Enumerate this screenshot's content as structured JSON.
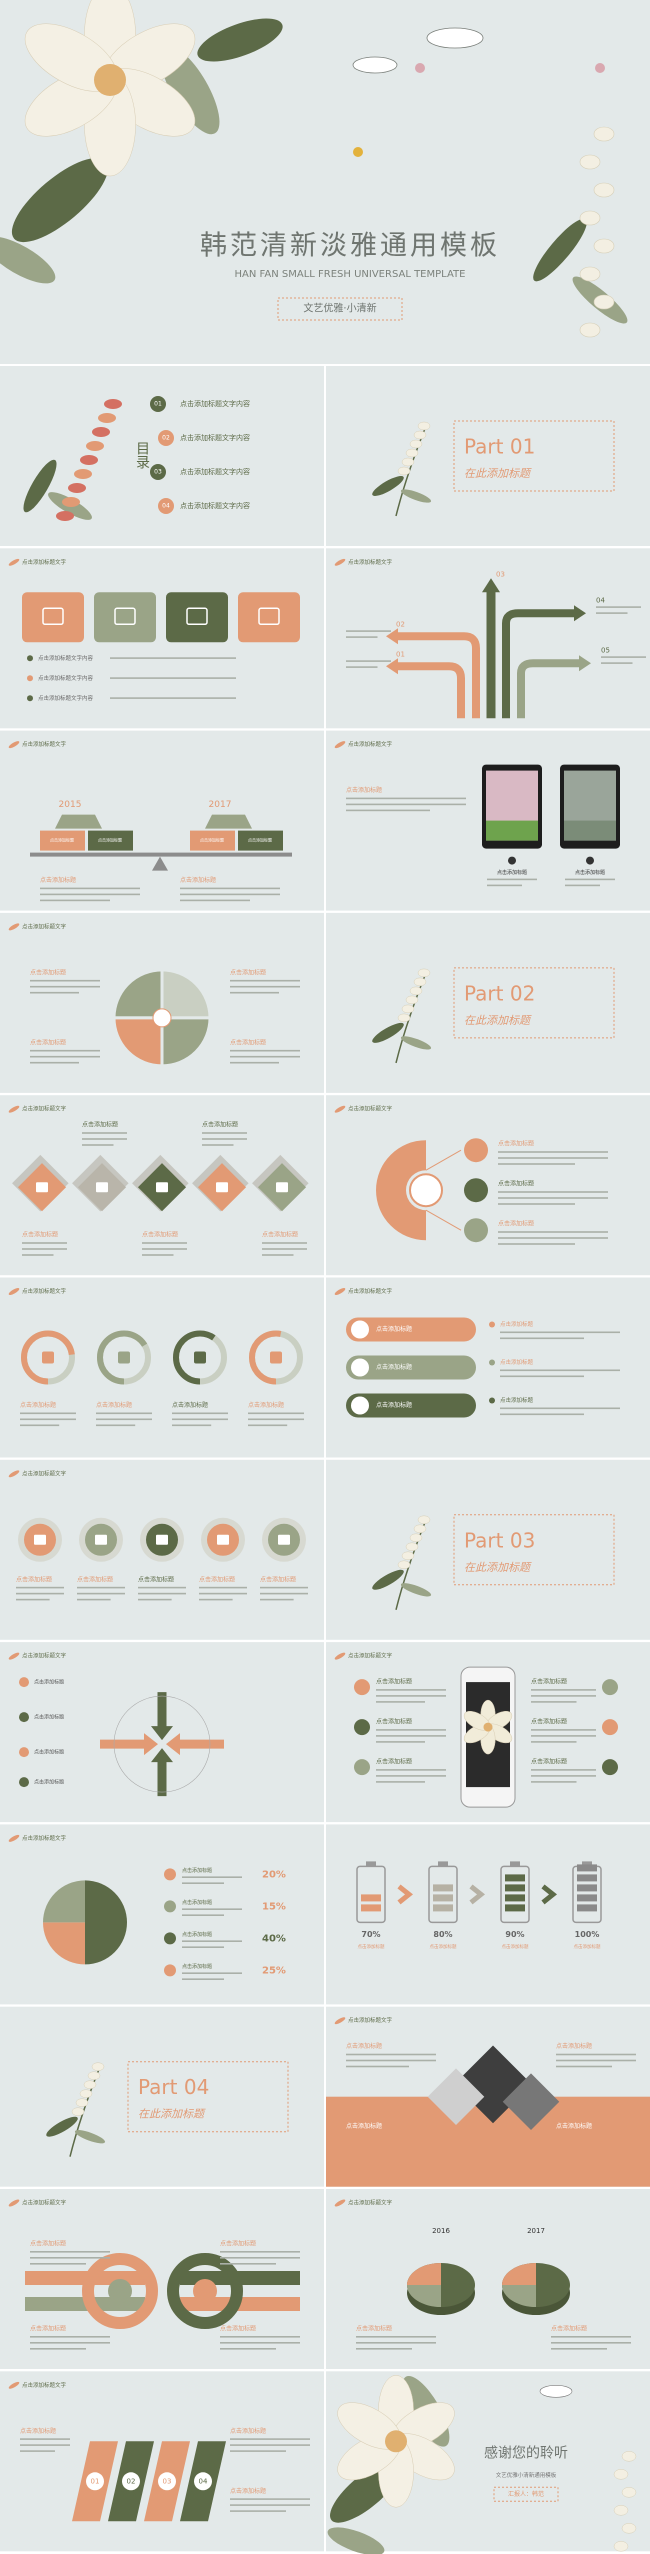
{
  "cover": {
    "title": "韩范清新淡雅通用模板",
    "subtitle": "HAN FAN SMALL FRESH UNIVERSAL TEMPLATE",
    "tagline": "文艺优雅·小清新"
  },
  "common": {
    "heading": "点击添加标题文字",
    "label": "点击添加标题",
    "text": "点击添加标题文字内容"
  },
  "contents": {
    "title": "目录",
    "items": [
      {
        "num": "01",
        "text": "点击添加标题文字内容"
      },
      {
        "num": "02",
        "text": "点击添加标题文字内容"
      },
      {
        "num": "03",
        "text": "点击添加标题文字内容"
      },
      {
        "num": "04",
        "text": "点击添加标题文字内容"
      }
    ]
  },
  "parts": [
    {
      "label": "Part 01",
      "subtitle": "在此添加标题"
    },
    {
      "label": "Part 02",
      "subtitle": "在此添加标题"
    },
    {
      "label": "Part 03",
      "subtitle": "在此添加标题"
    },
    {
      "label": "Part 04",
      "subtitle": "在此添加标题"
    }
  ],
  "arrows": {
    "labels": [
      "03",
      "04",
      "02",
      "01",
      "05"
    ]
  },
  "scale": {
    "years": [
      "2015",
      "2017"
    ]
  },
  "percent_list": [
    "20%",
    "15%",
    "40%",
    "25%"
  ],
  "batteries": [
    "70%",
    "80%",
    "90%",
    "100%"
  ],
  "pies3d": [
    "2016",
    "2017"
  ],
  "steps": [
    "01",
    "02",
    "03",
    "04"
  ],
  "ending": {
    "title": "感谢您的聆听",
    "subtitle": "文艺优雅小清新通用模板",
    "presenter": "汇报人：韩范"
  }
}
